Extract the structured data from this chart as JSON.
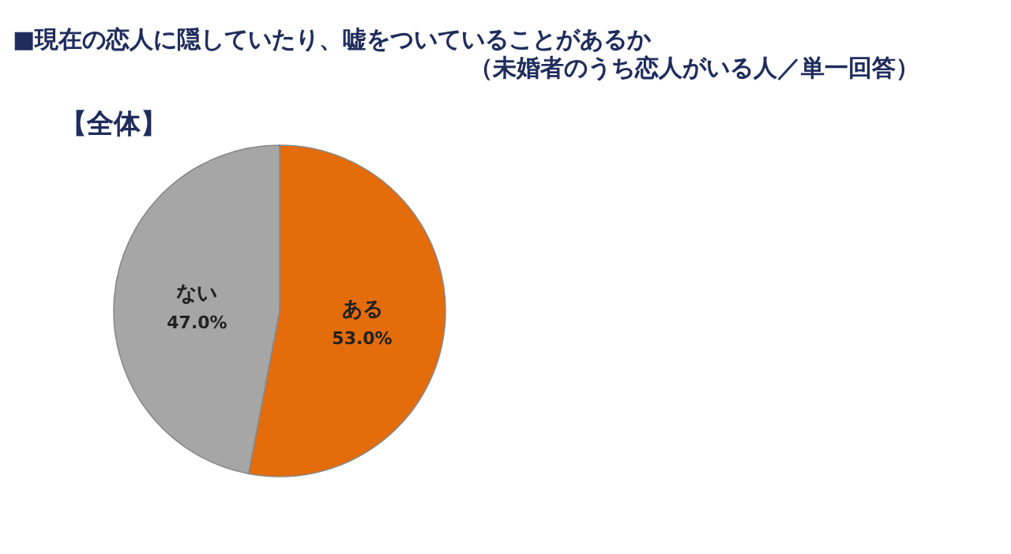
{
  "chart_data": {
    "type": "pie",
    "title": "■現在の恋人に隠していたり、嘘をついていることがあるか",
    "subtitle": "（未婚者のうち恋人がいる人／単一回答）",
    "annotations": [
      "【全体】"
    ],
    "categories": [
      "ある",
      "ない"
    ],
    "values": [
      53.0,
      47.0
    ],
    "value_labels": [
      "53.0%",
      "47.0%"
    ],
    "colors": [
      "#e46c0a",
      "#a6a6a6"
    ],
    "legend": false
  }
}
